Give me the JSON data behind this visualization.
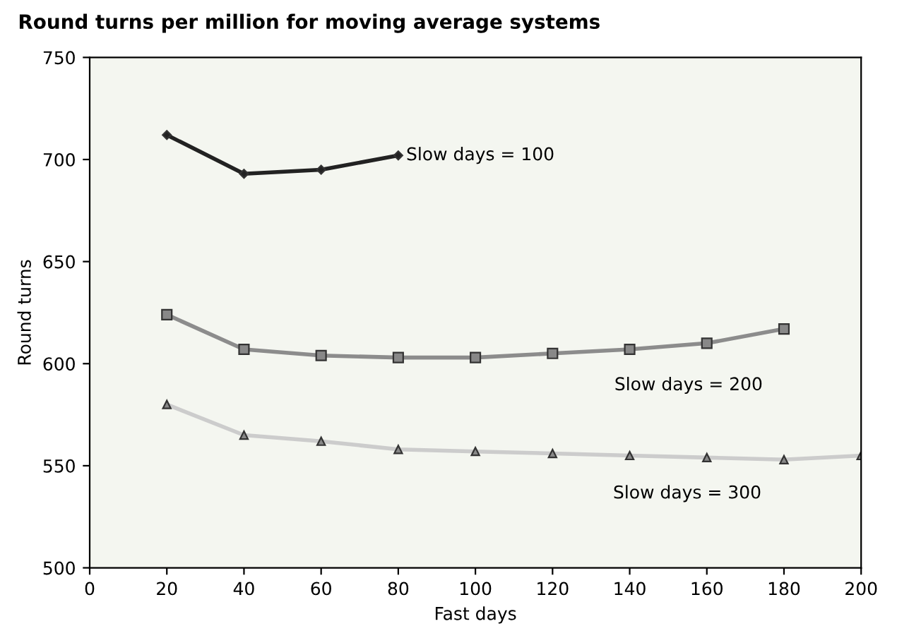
{
  "chart_data": {
    "type": "line",
    "title": "Round turns per million for moving average systems",
    "xlabel": "Fast days",
    "ylabel": "Round turns",
    "xlim": [
      0,
      200
    ],
    "xticks": [
      0,
      20,
      40,
      60,
      80,
      100,
      120,
      140,
      160,
      180,
      200
    ],
    "ylim": [
      500,
      750
    ],
    "yticks": [
      500,
      550,
      600,
      650,
      700,
      750
    ],
    "grid": false,
    "legend": false,
    "series": [
      {
        "name": "Slow days = 100",
        "color": "#222222",
        "marker": "diamond",
        "x": [
          20,
          40,
          60,
          80
        ],
        "values": [
          712,
          693,
          695,
          702
        ]
      },
      {
        "name": "Slow days = 200",
        "color": "#8c8c8c",
        "marker": "square",
        "x": [
          20,
          40,
          60,
          80,
          100,
          120,
          140,
          160,
          180
        ],
        "values": [
          624,
          607,
          604,
          603,
          603,
          605,
          607,
          610,
          617
        ]
      },
      {
        "name": "Slow days = 300",
        "color": "#cccccc",
        "marker": "triangle",
        "x": [
          20,
          40,
          60,
          80,
          100,
          120,
          140,
          160,
          180,
          200
        ],
        "values": [
          580,
          565,
          562,
          558,
          557,
          556,
          555,
          554,
          553,
          555
        ]
      }
    ]
  }
}
